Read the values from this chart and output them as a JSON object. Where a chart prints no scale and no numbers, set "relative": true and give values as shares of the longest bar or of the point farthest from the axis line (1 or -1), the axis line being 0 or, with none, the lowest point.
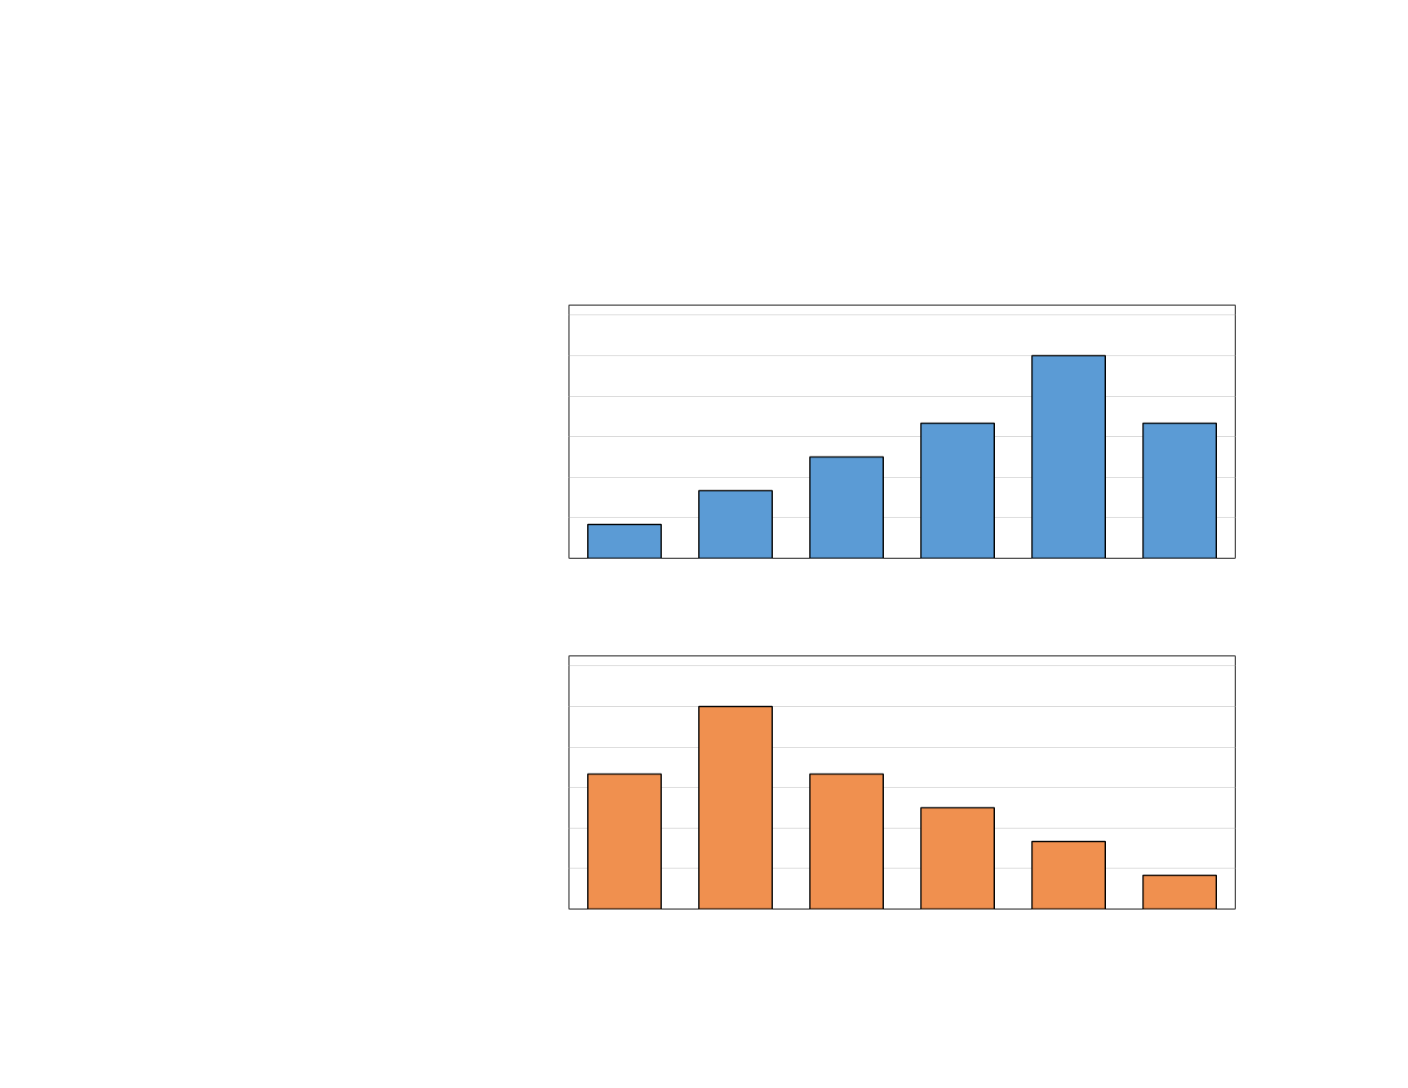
{
  "chart_data": [
    {
      "type": "bar",
      "relative": true,
      "categories": [
        null,
        null,
        null,
        null,
        null,
        null
      ],
      "values": [
        0.1667,
        0.3333,
        0.5,
        0.6667,
        1,
        0.6667
      ],
      "color": "#5b9bd5",
      "grid": "y",
      "tick_labels": false
    },
    {
      "type": "bar",
      "relative": true,
      "categories": [
        null,
        null,
        null,
        null,
        null,
        null
      ],
      "values": [
        0.6667,
        1,
        0.6667,
        0.5,
        0.3333,
        0.1667
      ],
      "color": "#f0904f",
      "grid": "y",
      "tick_labels": false
    }
  ]
}
